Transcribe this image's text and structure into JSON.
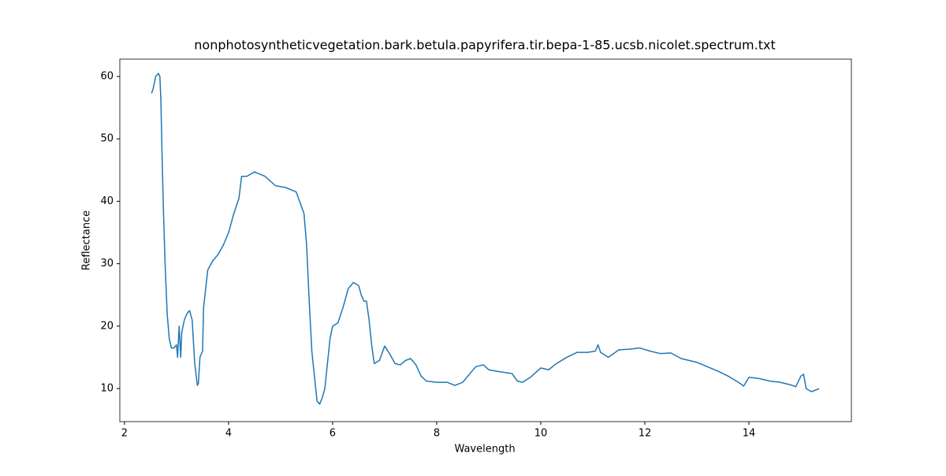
{
  "chart_data": {
    "type": "line",
    "title": "nonphotosyntheticvegetation.bark.betula.papyrifera.tir.bepa-1-85.ucsb.nicolet.spectrum.txt",
    "x_label": "Wavelength",
    "y_label": "Reflectance",
    "xlim": [
      1.91,
      15.97
    ],
    "ylim": [
      4.7,
      62.78
    ],
    "xticks": [
      2,
      4,
      6,
      8,
      10,
      12,
      14
    ],
    "yticks": [
      10,
      20,
      30,
      40,
      50,
      60
    ],
    "grid": false,
    "series": [
      {
        "color": "#1f77b4",
        "x": [
          2.52,
          2.55,
          2.6,
          2.65,
          2.68,
          2.7,
          2.72,
          2.75,
          2.78,
          2.82,
          2.86,
          2.9,
          2.95,
          3.0,
          3.02,
          3.05,
          3.08,
          3.1,
          3.15,
          3.2,
          3.25,
          3.3,
          3.35,
          3.4,
          3.42,
          3.45,
          3.5,
          3.52,
          3.6,
          3.7,
          3.8,
          3.9,
          4.0,
          4.1,
          4.2,
          4.25,
          4.35,
          4.5,
          4.7,
          4.9,
          5.1,
          5.3,
          5.45,
          5.5,
          5.55,
          5.6,
          5.65,
          5.7,
          5.75,
          5.8,
          5.85,
          5.9,
          5.95,
          6.0,
          6.1,
          6.2,
          6.3,
          6.4,
          6.5,
          6.55,
          6.6,
          6.65,
          6.7,
          6.75,
          6.8,
          6.9,
          7.0,
          7.1,
          7.2,
          7.3,
          7.4,
          7.5,
          7.6,
          7.7,
          7.8,
          8.0,
          8.2,
          8.35,
          8.5,
          8.6,
          8.75,
          8.9,
          9.0,
          9.2,
          9.45,
          9.55,
          9.65,
          9.8,
          10.0,
          10.15,
          10.3,
          10.5,
          10.7,
          10.9,
          11.05,
          11.1,
          11.15,
          11.3,
          11.5,
          11.7,
          11.9,
          12.1,
          12.3,
          12.5,
          12.7,
          13.0,
          13.2,
          13.4,
          13.6,
          13.8,
          13.9,
          14.0,
          14.2,
          14.4,
          14.6,
          14.8,
          14.9,
          15.0,
          15.05,
          15.1,
          15.2,
          15.3,
          15.35
        ],
        "values": [
          57.3,
          58,
          60,
          60.5,
          60,
          56,
          48,
          38,
          30,
          22,
          18,
          16.5,
          16.5,
          17,
          15,
          20,
          15,
          19,
          21,
          22,
          22.5,
          21,
          14,
          10.5,
          10.8,
          15,
          16,
          23,
          29,
          30.5,
          31.5,
          33,
          35,
          38,
          40.5,
          44,
          44,
          44.7,
          44,
          42.5,
          42.2,
          41.5,
          38,
          33,
          24,
          16,
          12,
          8,
          7.5,
          8.5,
          10,
          14,
          18,
          20,
          20.5,
          23,
          26,
          27,
          26.5,
          25,
          24,
          24,
          21,
          17,
          14,
          14.5,
          16.8,
          15.5,
          14,
          13.8,
          14.5,
          14.8,
          13.8,
          12,
          11.2,
          11,
          11,
          10.5,
          11,
          12,
          13.5,
          13.8,
          13,
          12.7,
          12.4,
          11.2,
          11,
          11.8,
          13.3,
          13,
          14,
          15,
          15.8,
          15.8,
          16,
          17,
          15.8,
          15,
          16.2,
          16.3,
          16.5,
          16,
          15.6,
          15.7,
          14.8,
          14.2,
          13.5,
          12.8,
          12,
          11,
          10.4,
          11.8,
          11.6,
          11.2,
          11,
          10.6,
          10.3,
          12,
          12.3,
          10,
          9.5,
          9.8,
          10
        ]
      }
    ]
  }
}
